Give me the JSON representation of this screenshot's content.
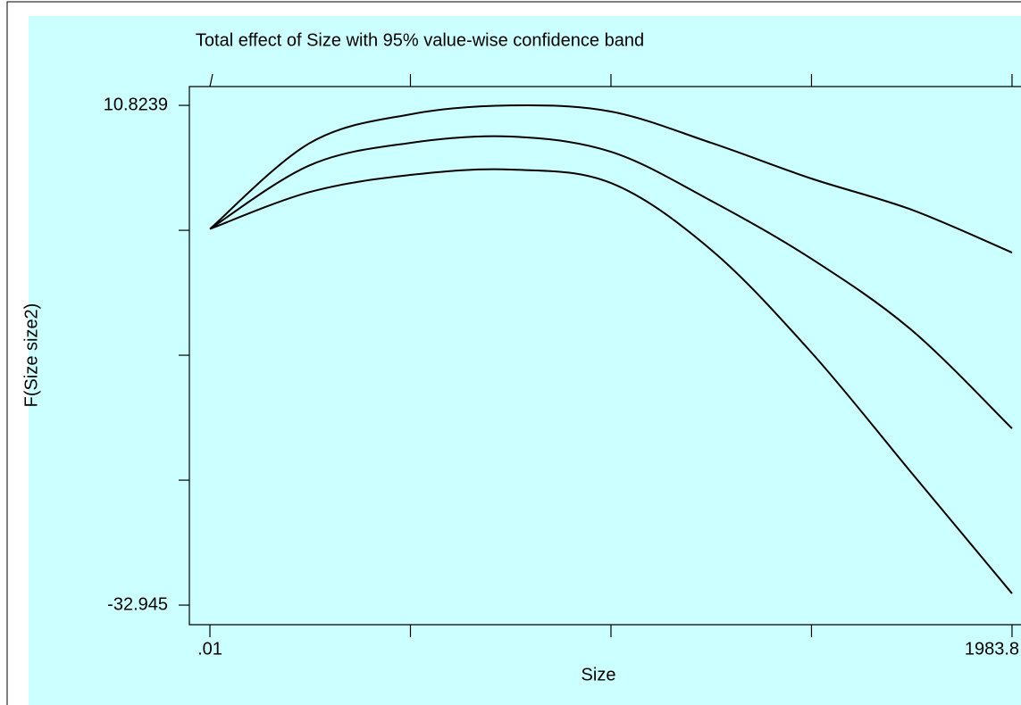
{
  "chart_data": {
    "type": "line",
    "title": "Total effect of Size with 95% value-wise confidence band",
    "x_label": "Size",
    "y_label": "F(Size size2)",
    "x": [
      0.01,
      247.7,
      495.96,
      744,
      991.9,
      1240,
      1487.85,
      1735.8,
      1983.8
    ],
    "series": [
      {
        "color": "#000000",
        "values": [
          0,
          7.54,
          10.04,
          10.82,
          10.28,
          7.54,
          4.41,
          1.68,
          -2.07
        ]
      },
      {
        "color": "#000000",
        "values": [
          0,
          5.59,
          7.54,
          8.09,
          6.76,
          2.46,
          -2.62,
          -8.87,
          -17.47
        ]
      },
      {
        "color": "#000000",
        "values": [
          0,
          3.24,
          4.73,
          5.2,
          4.02,
          -1.84,
          -10.83,
          -21.38,
          -31.93
        ]
      }
    ],
    "xlim": [
      -50.8,
      2006
    ],
    "ylim": [
      -34.66,
      12.47
    ],
    "xticks": [
      {
        "value": 0.01,
        "label": ".01"
      },
      1983.8
    ],
    "xminor_ticks": [
      495.96,
      991.9,
      1487.85
    ],
    "yticks": [
      10.8239,
      -32.945
    ],
    "yminor_ticks": [
      -0.1183,
      -11.0605,
      -22.0028
    ]
  }
}
